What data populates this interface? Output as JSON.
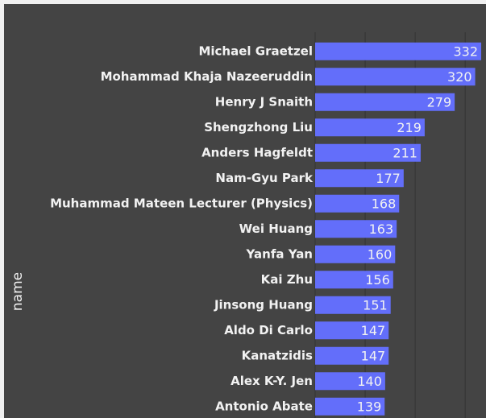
{
  "chart_data": {
    "type": "bar",
    "orientation": "horizontal",
    "y_label": "name",
    "categories": [
      "Michael Graetzel",
      "Mohammad Khaja Nazeeruddin",
      "Henry J Snaith",
      "Shengzhong Liu",
      "Anders Hagfeldt",
      "Nam-Gyu Park",
      "Muhammad Mateen Lecturer (Physics)",
      "Wei Huang",
      "Yanfa Yan",
      "Kai Zhu",
      "Jinsong Huang",
      "Aldo Di Carlo",
      "Kanatzidis",
      "Alex K-Y. Jen",
      "Antonio Abate"
    ],
    "values": [
      332,
      320,
      279,
      219,
      211,
      177,
      168,
      163,
      160,
      156,
      151,
      147,
      147,
      140,
      139
    ],
    "color": "#636efa",
    "xlim": [
      0,
      340
    ],
    "xticks": [
      0,
      100,
      200,
      300
    ],
    "grid": true
  }
}
